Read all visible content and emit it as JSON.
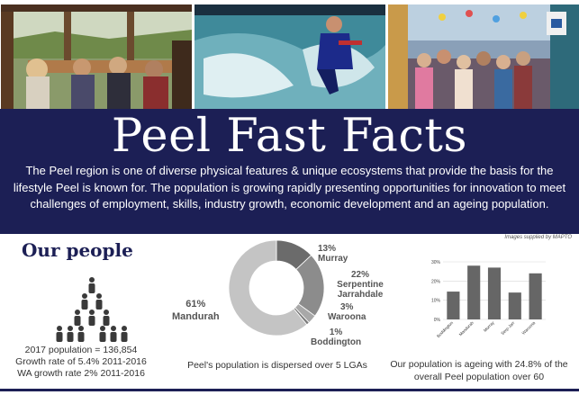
{
  "banner": {
    "title": "Peel Fast Facts",
    "text": "The Peel region is one of diverse physical features & unique ecosystems that provide the basis for the lifestyle Peel is known for. The population is growing  rapidly presenting opportunities for innovation to meet challenges of employment, skills, industry growth, economic development and an ageing population."
  },
  "credit": "Images supplied by MAPTO",
  "people": {
    "title": "Our people",
    "population": "2017 population = 136,854",
    "growth": "Growth rate of 5.4% 2011-2016",
    "wa_growth": "WA growth rate 2% 2011-2016"
  },
  "lgas": {
    "caption": "Peel's population is dispersed over 5 LGAs",
    "slices": [
      {
        "name": "Murray",
        "pct": "13%",
        "value": 13,
        "color": "#6b6b6b"
      },
      {
        "name": "Serpentine Jarrahdale",
        "pct": "22%",
        "value": 22,
        "color": "#8c8c8c"
      },
      {
        "name": "Waroona",
        "pct": "3%",
        "value": 3,
        "color": "#a8a8a8"
      },
      {
        "name": "Boddington",
        "pct": "1%",
        "value": 1,
        "color": "#7a7a7a"
      },
      {
        "name": "Mandurah",
        "pct": "61%",
        "value": 61,
        "color": "#c4c4c4"
      }
    ]
  },
  "ageing": {
    "caption": "Our population is ageing with 24.8% of the overall Peel population over 60"
  },
  "chart_data": [
    {
      "type": "pie",
      "categories": [
        "Murray",
        "Serpentine Jarrahdale",
        "Waroona",
        "Boddington",
        "Mandurah"
      ],
      "values": [
        13,
        22,
        3,
        1,
        61
      ],
      "title": "",
      "legend": "labels beside slices"
    },
    {
      "type": "bar",
      "categories": [
        "Boddington",
        "Mandurah",
        "Murray",
        "Serp-Jarr",
        "Waroona"
      ],
      "values": [
        14.5,
        28,
        27,
        14,
        24
      ],
      "yticks": [
        "0%",
        "10%",
        "20%",
        "30%"
      ],
      "ylim": [
        0,
        30
      ],
      "title": "",
      "xlabel": "",
      "ylabel": "",
      "grid": true,
      "color": "#666666"
    }
  ]
}
